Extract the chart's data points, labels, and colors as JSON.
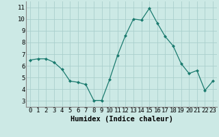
{
  "x": [
    0,
    1,
    2,
    3,
    4,
    5,
    6,
    7,
    8,
    9,
    10,
    11,
    12,
    13,
    14,
    15,
    16,
    17,
    18,
    19,
    20,
    21,
    22,
    23
  ],
  "y": [
    6.5,
    6.6,
    6.6,
    6.3,
    5.7,
    4.7,
    4.6,
    4.4,
    3.05,
    3.05,
    4.85,
    6.9,
    8.6,
    10.0,
    9.9,
    10.9,
    9.65,
    8.5,
    7.7,
    6.2,
    5.35,
    5.6,
    3.9,
    4.7
  ],
  "line_color": "#1a7a6e",
  "marker": "D",
  "marker_size": 2.0,
  "bg_color": "#cce9e5",
  "grid_color": "#aacfcc",
  "xlabel": "Humidex (Indice chaleur)",
  "xlim": [
    -0.5,
    23.5
  ],
  "ylim": [
    2.5,
    11.5
  ],
  "yticks": [
    3,
    4,
    5,
    6,
    7,
    8,
    9,
    10,
    11
  ],
  "xticks": [
    0,
    1,
    2,
    3,
    4,
    5,
    6,
    7,
    8,
    9,
    10,
    11,
    12,
    13,
    14,
    15,
    16,
    17,
    18,
    19,
    20,
    21,
    22,
    23
  ],
  "tick_fontsize": 6.5,
  "xlabel_fontsize": 7.5,
  "spine_color": "#888888",
  "linewidth": 0.9
}
